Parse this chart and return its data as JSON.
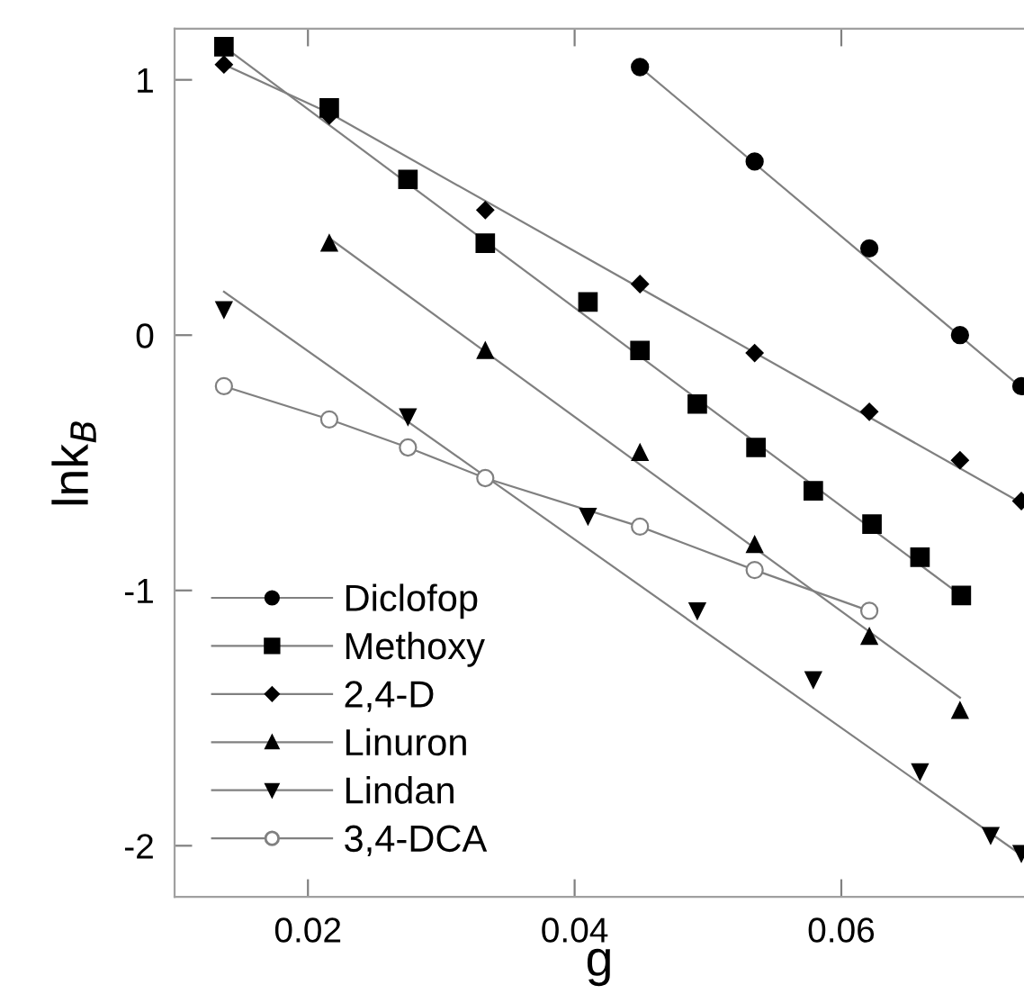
{
  "chart_data": {
    "type": "scatter",
    "xlabel": "g",
    "ylabel": "lnk$_{B}$",
    "xlim": [
      0.01,
      0.0737
    ],
    "ylim": [
      -2.2,
      1.2
    ],
    "xticks": [
      0.02,
      0.04,
      0.06
    ],
    "yticks": [
      {
        "value": -2,
        "label": "-2"
      },
      {
        "value": -1,
        "label": "-1"
      },
      0,
      1
    ],
    "legend": "bottom left",
    "grid": false,
    "series": [
      {
        "name": "Diclofop",
        "marker": "circle",
        "color": "#000000",
        "x": [
          0.0449,
          0.0535,
          0.0621,
          0.0689,
          0.0735
        ],
        "values": [
          1.05,
          0.68,
          0.34,
          0.0,
          -0.2
        ]
      },
      {
        "type": "line",
        "color": "#808080",
        "x": [
          0.0449,
          0.0736
        ],
        "values": [
          1.05,
          -0.21
        ]
      },
      {
        "name": "Methoxy",
        "marker": "square",
        "color": "#000000",
        "x": [
          0.0137,
          0.0216,
          0.0275,
          0.0333,
          0.041,
          0.0449,
          0.0492,
          0.0536,
          0.0579,
          0.0623,
          0.0659,
          0.069
        ],
        "values": [
          1.13,
          0.89,
          0.61,
          0.36,
          0.13,
          -0.06,
          -0.27,
          -0.44,
          -0.61,
          -0.74,
          -0.87,
          -1.02
        ]
      },
      {
        "type": "line",
        "color": "#808080",
        "x": [
          0.0137,
          0.069
        ],
        "values": [
          1.13,
          -1.02
        ]
      },
      {
        "name": "2,4-D",
        "marker": "diamond",
        "color": "#000000",
        "x": [
          0.0137,
          0.0216,
          0.0333,
          0.0449,
          0.0535,
          0.0621,
          0.0689,
          0.0735
        ],
        "values": [
          1.06,
          0.86,
          0.49,
          0.2,
          -0.07,
          -0.3,
          -0.49,
          -0.65
        ]
      },
      {
        "type": "line",
        "color": "#808080",
        "x": [
          0.0137,
          0.0216,
          0.0736
        ],
        "values": [
          1.06,
          0.87,
          -0.66
        ]
      },
      {
        "name": "Linuron",
        "marker": "triangle",
        "color": "#000000",
        "x": [
          0.0216,
          0.0333,
          0.0449,
          0.0535,
          0.0621,
          0.0689
        ],
        "values": [
          0.36,
          -0.06,
          -0.46,
          -0.82,
          -1.18,
          -1.47
        ]
      },
      {
        "type": "line",
        "color": "#808080",
        "x": [
          0.0216,
          0.0689
        ],
        "values": [
          0.38,
          -1.42
        ]
      },
      {
        "name": "Lindan",
        "marker": "triangle_down",
        "color": "#000000",
        "x": [
          0.0137,
          0.0275,
          0.041,
          0.0492,
          0.0579,
          0.0659,
          0.0712,
          0.0735
        ],
        "values": [
          0.1,
          -0.32,
          -0.71,
          -1.08,
          -1.35,
          -1.71,
          -1.96,
          -2.03
        ]
      },
      {
        "type": "line",
        "color": "#808080",
        "x": [
          0.0137,
          0.0736
        ],
        "values": [
          0.17,
          -2.04
        ]
      },
      {
        "name": "3,4-DCA",
        "marker": "open circle",
        "color": "#808080",
        "x": [
          0.0137,
          0.0216,
          0.0275,
          0.0333,
          0.0449,
          0.0535,
          0.0621
        ],
        "values": [
          -0.2,
          -0.33,
          -0.44,
          -0.56,
          -0.75,
          -0.92,
          -1.08
        ]
      },
      {
        "type": "line",
        "color": "#808080",
        "x": [
          0.0137,
          0.0216,
          0.0275,
          0.0333,
          0.0449,
          0.0535,
          0.0621
        ],
        "values": [
          -0.2,
          -0.33,
          -0.44,
          -0.56,
          -0.75,
          -0.92,
          -1.08
        ]
      }
    ]
  }
}
